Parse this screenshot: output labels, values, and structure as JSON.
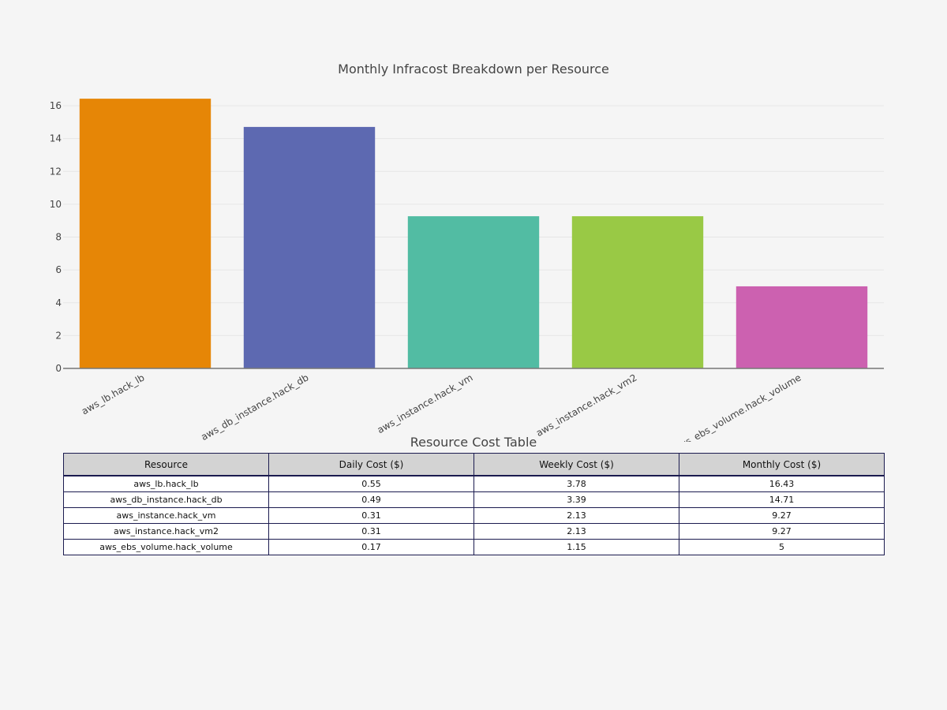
{
  "chart_data": {
    "type": "bar",
    "title": "Monthly Infracost Breakdown per Resource",
    "xlabel": "",
    "ylabel": "",
    "categories": [
      "aws_lb.hack_lb",
      "aws_db_instance.hack_db",
      "aws_instance.hack_vm",
      "aws_instance.hack_vm2",
      "aws_ebs_volume.hack_volume"
    ],
    "values": [
      16.43,
      14.71,
      9.27,
      9.27,
      5
    ],
    "colors": [
      "#e68606",
      "#5d69b1",
      "#52bca3",
      "#99c945",
      "#cc61b0"
    ],
    "ylim": [
      0,
      17.3
    ],
    "yticks": [
      0,
      2,
      4,
      6,
      8,
      10,
      12,
      14,
      16
    ],
    "grid": true,
    "legend": "none"
  },
  "table": {
    "title": "Resource Cost Table",
    "headers": [
      "Resource",
      "Daily Cost ($)",
      "Weekly Cost ($)",
      "Monthly Cost ($)"
    ],
    "rows": [
      [
        "aws_lb.hack_lb",
        "0.55",
        "3.78",
        "16.43"
      ],
      [
        "aws_db_instance.hack_db",
        "0.49",
        "3.39",
        "14.71"
      ],
      [
        "aws_instance.hack_vm",
        "0.31",
        "2.13",
        "9.27"
      ],
      [
        "aws_instance.hack_vm2",
        "0.31",
        "2.13",
        "9.27"
      ],
      [
        "aws_ebs_volume.hack_volume",
        "0.17",
        "1.15",
        "5"
      ]
    ]
  }
}
